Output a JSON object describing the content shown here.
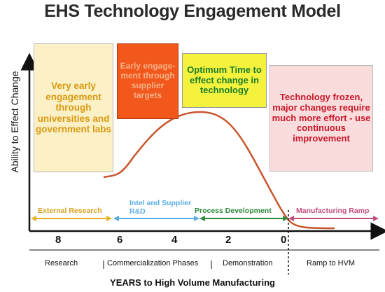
{
  "title": "EHS Technology Engagement Model",
  "y_axis_label": "Ability to Effect Change",
  "x_axis_label": "YEARS to High Volume Manufacturing",
  "boxes": {
    "very_early": "Very early engagement through universities and government labs",
    "early": "Early engage-ment through supplier targets",
    "optimum": "Optimum Time to effect change in technology",
    "frozen": "Technology frozen, major changes require much more effort - use continuous improvement"
  },
  "phases": {
    "external_research": "External Research",
    "intel_supplier_line1": "Intel and Supplier",
    "intel_supplier_line2": "R&D",
    "process_development": "Process Development",
    "manufacturing_ramp": "Manufacturing Ramp"
  },
  "year_ticks": [
    "8",
    "6",
    "4",
    "2",
    "0"
  ],
  "stages": {
    "research": "Research",
    "commercialization": "Commercialization Phases",
    "demonstration": "Demonstration",
    "ramp": "Ramp to HVM"
  },
  "colors": {
    "curve": "#c8552b",
    "external_research": "#e2b52a",
    "intel_supplier": "#5aaee5",
    "process_development": "#2f8a3c",
    "manufacturing_ramp": "#c2507f"
  }
}
